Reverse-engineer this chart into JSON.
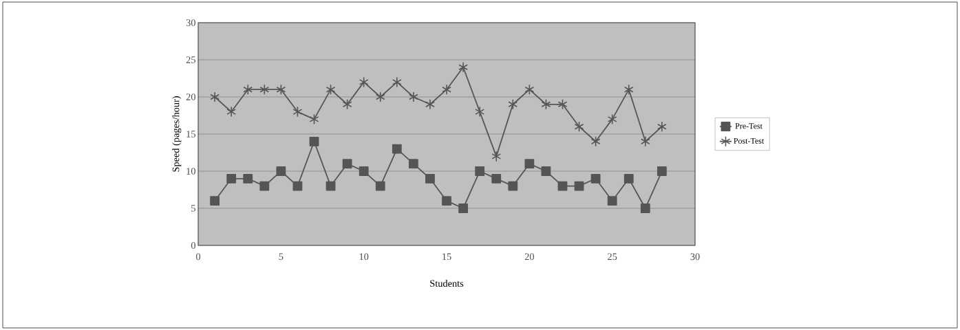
{
  "chart_data": {
    "type": "line",
    "xlabel": "Students",
    "ylabel": "Speed (pages/hour)",
    "x": [
      1,
      2,
      3,
      4,
      5,
      6,
      7,
      8,
      9,
      10,
      11,
      12,
      13,
      14,
      15,
      16,
      17,
      18,
      19,
      20,
      21,
      22,
      23,
      24,
      25,
      26,
      27,
      28
    ],
    "series": [
      {
        "name": "Pre-Test",
        "color": "#555555",
        "marker": "square",
        "values": [
          6,
          9,
          9,
          8,
          10,
          8,
          14,
          8,
          11,
          10,
          8,
          13,
          11,
          9,
          6,
          5,
          10,
          9,
          8,
          11,
          10,
          8,
          8,
          9,
          6,
          9,
          5,
          10
        ]
      },
      {
        "name": "Post-Test",
        "color": "#555555",
        "marker": "cross",
        "values": [
          20,
          18,
          21,
          21,
          21,
          18,
          17,
          21,
          19,
          22,
          20,
          22,
          20,
          19,
          21,
          24,
          18,
          12,
          19,
          21,
          19,
          19,
          16,
          14,
          17,
          21,
          14,
          16
        ]
      }
    ],
    "xlim": [
      0,
      30
    ],
    "xticks": [
      0,
      5,
      10,
      15,
      20,
      25,
      30
    ],
    "ylim": [
      0,
      30
    ],
    "yticks": [
      0,
      5,
      10,
      15,
      20,
      25,
      30
    ],
    "grid": "y",
    "legend": "right",
    "line_style": "solid"
  }
}
